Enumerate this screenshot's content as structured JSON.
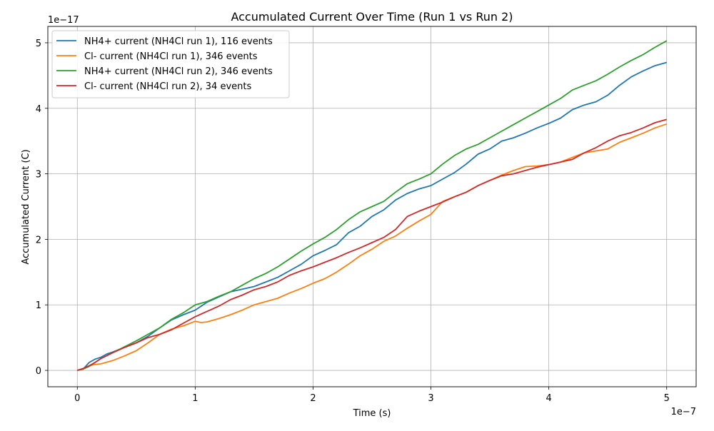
{
  "chart_data": {
    "type": "line",
    "title": "Accumulated Current Over Time (Run 1 vs Run 2)",
    "xlabel": "Time (s)",
    "ylabel": "Accumulated Current (C)",
    "x_offset_label": "1e−7",
    "y_offset_label": "1e−17",
    "xlim": [
      -0.25,
      5.25
    ],
    "ylim": [
      -0.25,
      5.25
    ],
    "x_ticks": [
      0,
      1,
      2,
      3,
      4,
      5
    ],
    "y_ticks": [
      0,
      1,
      2,
      3,
      4,
      5
    ],
    "x_tick_labels": [
      "0",
      "1",
      "2",
      "3",
      "4",
      "5"
    ],
    "y_tick_labels": [
      "0",
      "1",
      "2",
      "3",
      "4",
      "5"
    ],
    "grid": true,
    "legend_position": "top-left",
    "series": [
      {
        "name": "NH4+ current (NH4Cl run 1), 116 events",
        "color": "#1f77b4",
        "points": [
          [
            0,
            0
          ],
          [
            0.05,
            0.02
          ],
          [
            0.1,
            0.12
          ],
          [
            0.15,
            0.17
          ],
          [
            0.2,
            0.2
          ],
          [
            0.25,
            0.25
          ],
          [
            0.3,
            0.28
          ],
          [
            0.4,
            0.35
          ],
          [
            0.5,
            0.42
          ],
          [
            0.6,
            0.52
          ],
          [
            0.7,
            0.65
          ],
          [
            0.8,
            0.77
          ],
          [
            0.9,
            0.85
          ],
          [
            1.0,
            0.92
          ],
          [
            1.1,
            1.04
          ],
          [
            1.2,
            1.12
          ],
          [
            1.3,
            1.2
          ],
          [
            1.4,
            1.24
          ],
          [
            1.5,
            1.28
          ],
          [
            1.6,
            1.35
          ],
          [
            1.7,
            1.42
          ],
          [
            1.8,
            1.52
          ],
          [
            1.9,
            1.62
          ],
          [
            2.0,
            1.75
          ],
          [
            2.1,
            1.83
          ],
          [
            2.2,
            1.92
          ],
          [
            2.3,
            2.1
          ],
          [
            2.4,
            2.2
          ],
          [
            2.5,
            2.35
          ],
          [
            2.6,
            2.45
          ],
          [
            2.7,
            2.6
          ],
          [
            2.8,
            2.7
          ],
          [
            2.9,
            2.77
          ],
          [
            3.0,
            2.82
          ],
          [
            3.1,
            2.92
          ],
          [
            3.2,
            3.02
          ],
          [
            3.3,
            3.15
          ],
          [
            3.4,
            3.3
          ],
          [
            3.5,
            3.38
          ],
          [
            3.6,
            3.5
          ],
          [
            3.7,
            3.55
          ],
          [
            3.8,
            3.62
          ],
          [
            3.9,
            3.7
          ],
          [
            4.0,
            3.77
          ],
          [
            4.1,
            3.85
          ],
          [
            4.2,
            3.98
          ],
          [
            4.3,
            4.05
          ],
          [
            4.4,
            4.1
          ],
          [
            4.5,
            4.2
          ],
          [
            4.6,
            4.35
          ],
          [
            4.7,
            4.48
          ],
          [
            4.8,
            4.57
          ],
          [
            4.9,
            4.65
          ],
          [
            5.0,
            4.7
          ]
        ]
      },
      {
        "name": "Cl- current (NH4Cl run 1), 346 events",
        "color": "#ff7f0e",
        "points": [
          [
            0,
            0
          ],
          [
            0.05,
            0.02
          ],
          [
            0.1,
            0.07
          ],
          [
            0.15,
            0.09
          ],
          [
            0.2,
            0.1
          ],
          [
            0.3,
            0.15
          ],
          [
            0.4,
            0.22
          ],
          [
            0.5,
            0.3
          ],
          [
            0.6,
            0.42
          ],
          [
            0.7,
            0.55
          ],
          [
            0.8,
            0.63
          ],
          [
            0.9,
            0.68
          ],
          [
            1.0,
            0.75
          ],
          [
            1.05,
            0.73
          ],
          [
            1.1,
            0.74
          ],
          [
            1.2,
            0.79
          ],
          [
            1.3,
            0.85
          ],
          [
            1.4,
            0.92
          ],
          [
            1.5,
            1.0
          ],
          [
            1.6,
            1.05
          ],
          [
            1.7,
            1.1
          ],
          [
            1.8,
            1.18
          ],
          [
            1.9,
            1.25
          ],
          [
            2.0,
            1.33
          ],
          [
            2.1,
            1.4
          ],
          [
            2.2,
            1.5
          ],
          [
            2.3,
            1.62
          ],
          [
            2.4,
            1.75
          ],
          [
            2.5,
            1.85
          ],
          [
            2.6,
            1.97
          ],
          [
            2.7,
            2.05
          ],
          [
            2.8,
            2.17
          ],
          [
            2.9,
            2.28
          ],
          [
            3.0,
            2.38
          ],
          [
            3.05,
            2.48
          ],
          [
            3.1,
            2.58
          ],
          [
            3.2,
            2.65
          ],
          [
            3.3,
            2.72
          ],
          [
            3.4,
            2.82
          ],
          [
            3.5,
            2.9
          ],
          [
            3.6,
            2.98
          ],
          [
            3.7,
            3.05
          ],
          [
            3.8,
            3.11
          ],
          [
            3.9,
            3.12
          ],
          [
            4.0,
            3.14
          ],
          [
            4.1,
            3.18
          ],
          [
            4.2,
            3.25
          ],
          [
            4.3,
            3.32
          ],
          [
            4.4,
            3.35
          ],
          [
            4.5,
            3.38
          ],
          [
            4.6,
            3.48
          ],
          [
            4.7,
            3.55
          ],
          [
            4.8,
            3.62
          ],
          [
            4.9,
            3.7
          ],
          [
            5.0,
            3.76
          ]
        ]
      },
      {
        "name": "NH4+ current (NH4Cl run 2), 346 events",
        "color": "#2ca02c",
        "points": [
          [
            0,
            0
          ],
          [
            0.05,
            0.02
          ],
          [
            0.1,
            0.06
          ],
          [
            0.15,
            0.12
          ],
          [
            0.2,
            0.18
          ],
          [
            0.3,
            0.27
          ],
          [
            0.4,
            0.36
          ],
          [
            0.5,
            0.45
          ],
          [
            0.6,
            0.55
          ],
          [
            0.7,
            0.65
          ],
          [
            0.8,
            0.78
          ],
          [
            0.9,
            0.88
          ],
          [
            1.0,
            1.0
          ],
          [
            1.1,
            1.05
          ],
          [
            1.2,
            1.13
          ],
          [
            1.3,
            1.2
          ],
          [
            1.4,
            1.3
          ],
          [
            1.5,
            1.4
          ],
          [
            1.6,
            1.48
          ],
          [
            1.7,
            1.58
          ],
          [
            1.8,
            1.7
          ],
          [
            1.9,
            1.82
          ],
          [
            2.0,
            1.93
          ],
          [
            2.1,
            2.03
          ],
          [
            2.2,
            2.15
          ],
          [
            2.3,
            2.3
          ],
          [
            2.4,
            2.42
          ],
          [
            2.5,
            2.5
          ],
          [
            2.6,
            2.58
          ],
          [
            2.7,
            2.72
          ],
          [
            2.8,
            2.85
          ],
          [
            2.9,
            2.92
          ],
          [
            3.0,
            3.0
          ],
          [
            3.1,
            3.15
          ],
          [
            3.2,
            3.28
          ],
          [
            3.3,
            3.38
          ],
          [
            3.4,
            3.45
          ],
          [
            3.5,
            3.55
          ],
          [
            3.6,
            3.65
          ],
          [
            3.7,
            3.75
          ],
          [
            3.8,
            3.85
          ],
          [
            3.9,
            3.95
          ],
          [
            4.0,
            4.05
          ],
          [
            4.1,
            4.15
          ],
          [
            4.2,
            4.28
          ],
          [
            4.3,
            4.35
          ],
          [
            4.4,
            4.42
          ],
          [
            4.5,
            4.52
          ],
          [
            4.6,
            4.63
          ],
          [
            4.7,
            4.73
          ],
          [
            4.8,
            4.82
          ],
          [
            4.9,
            4.93
          ],
          [
            5.0,
            5.03
          ]
        ]
      },
      {
        "name": "Cl- current (NH4Cl run 2), 34 events",
        "color": "#d62728",
        "points": [
          [
            0,
            0
          ],
          [
            0.05,
            0.03
          ],
          [
            0.1,
            0.07
          ],
          [
            0.15,
            0.12
          ],
          [
            0.2,
            0.18
          ],
          [
            0.3,
            0.27
          ],
          [
            0.4,
            0.35
          ],
          [
            0.5,
            0.42
          ],
          [
            0.6,
            0.5
          ],
          [
            0.7,
            0.55
          ],
          [
            0.8,
            0.62
          ],
          [
            0.9,
            0.72
          ],
          [
            1.0,
            0.82
          ],
          [
            1.1,
            0.9
          ],
          [
            1.2,
            0.98
          ],
          [
            1.3,
            1.08
          ],
          [
            1.4,
            1.15
          ],
          [
            1.5,
            1.23
          ],
          [
            1.6,
            1.28
          ],
          [
            1.7,
            1.35
          ],
          [
            1.8,
            1.45
          ],
          [
            1.9,
            1.52
          ],
          [
            2.0,
            1.58
          ],
          [
            2.1,
            1.65
          ],
          [
            2.2,
            1.72
          ],
          [
            2.3,
            1.8
          ],
          [
            2.4,
            1.87
          ],
          [
            2.5,
            1.95
          ],
          [
            2.6,
            2.03
          ],
          [
            2.7,
            2.15
          ],
          [
            2.8,
            2.35
          ],
          [
            2.9,
            2.43
          ],
          [
            3.0,
            2.5
          ],
          [
            3.1,
            2.57
          ],
          [
            3.2,
            2.65
          ],
          [
            3.3,
            2.72
          ],
          [
            3.4,
            2.82
          ],
          [
            3.5,
            2.9
          ],
          [
            3.6,
            2.97
          ],
          [
            3.7,
            3.0
          ],
          [
            3.8,
            3.05
          ],
          [
            3.9,
            3.1
          ],
          [
            4.0,
            3.14
          ],
          [
            4.1,
            3.18
          ],
          [
            4.2,
            3.22
          ],
          [
            4.3,
            3.32
          ],
          [
            4.4,
            3.4
          ],
          [
            4.5,
            3.5
          ],
          [
            4.6,
            3.58
          ],
          [
            4.7,
            3.63
          ],
          [
            4.8,
            3.7
          ],
          [
            4.9,
            3.78
          ],
          [
            5.0,
            3.83
          ]
        ]
      }
    ]
  }
}
